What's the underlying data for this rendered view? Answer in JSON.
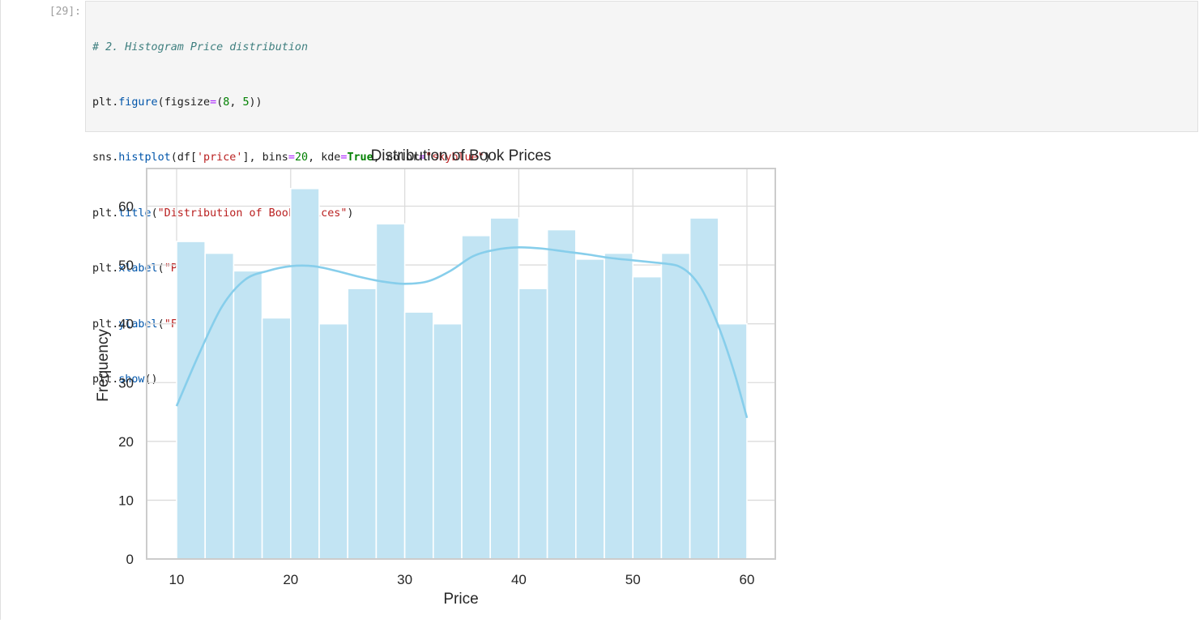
{
  "cell": {
    "prompt": "[29]:",
    "code": {
      "comment": "# 2. Histogram Price distribution",
      "line2": {
        "obj": "plt",
        "fn": "figure",
        "kw": "figsize",
        "n1": "8",
        "n2": "5"
      },
      "line3": {
        "obj": "sns",
        "fn": "histplot",
        "df": "df",
        "col": "'price'",
        "kw_bins": "bins",
        "bins": "20",
        "kw_kde": "kde",
        "kde": "True",
        "kw_color": "color",
        "color": "\"skyblue\""
      },
      "line4": {
        "obj": "plt",
        "fn": "title",
        "arg": "\"Distribution of Book Prices\""
      },
      "line5": {
        "obj": "plt",
        "fn": "xlabel",
        "arg": "\"Price\""
      },
      "line6": {
        "obj": "plt",
        "fn": "ylabel",
        "arg": "\"Frequency\""
      },
      "line7": {
        "obj": "plt",
        "fn": "show"
      }
    }
  },
  "colors": {
    "bar_fill": "#c2e4f3",
    "bar_edge": "#ffffff",
    "kde_line": "#87ceeb",
    "grid": "#dcdcdc",
    "frame": "#cccccc"
  },
  "chart_data": {
    "type": "bar",
    "title": "Distribution of Book Prices",
    "xlabel": "Price",
    "ylabel": "Frequency",
    "xlim": [
      10,
      60
    ],
    "ylim": [
      0,
      66
    ],
    "xticks": [
      10,
      20,
      30,
      40,
      50,
      60
    ],
    "yticks": [
      0,
      10,
      20,
      30,
      40,
      50,
      60
    ],
    "grid": true,
    "bin_edges": [
      10,
      12.5,
      15,
      17.5,
      20,
      22.5,
      25,
      27.5,
      30,
      32.5,
      35,
      37.5,
      40,
      42.5,
      45,
      47.5,
      50,
      52.5,
      55,
      57.5,
      60
    ],
    "values": [
      54,
      52,
      49,
      41,
      63,
      40,
      46,
      57,
      42,
      40,
      55,
      58,
      46,
      56,
      51,
      52,
      48,
      52,
      58,
      40
    ],
    "kde": {
      "x": [
        10,
        12,
        14,
        16,
        18,
        20,
        22,
        24,
        26,
        28,
        30,
        32,
        34,
        36,
        38,
        40,
        42,
        44,
        46,
        48,
        50,
        52,
        53,
        54,
        55,
        56,
        57,
        58,
        59,
        60
      ],
      "y": [
        26,
        35,
        43,
        47.5,
        49,
        49.8,
        49.8,
        49,
        48,
        47.2,
        46.8,
        47.2,
        49,
        51.5,
        52.6,
        53,
        52.8,
        52.3,
        51.8,
        51.2,
        50.8,
        50.4,
        50.2,
        49.8,
        48.5,
        46,
        42,
        37,
        31,
        24
      ]
    }
  }
}
